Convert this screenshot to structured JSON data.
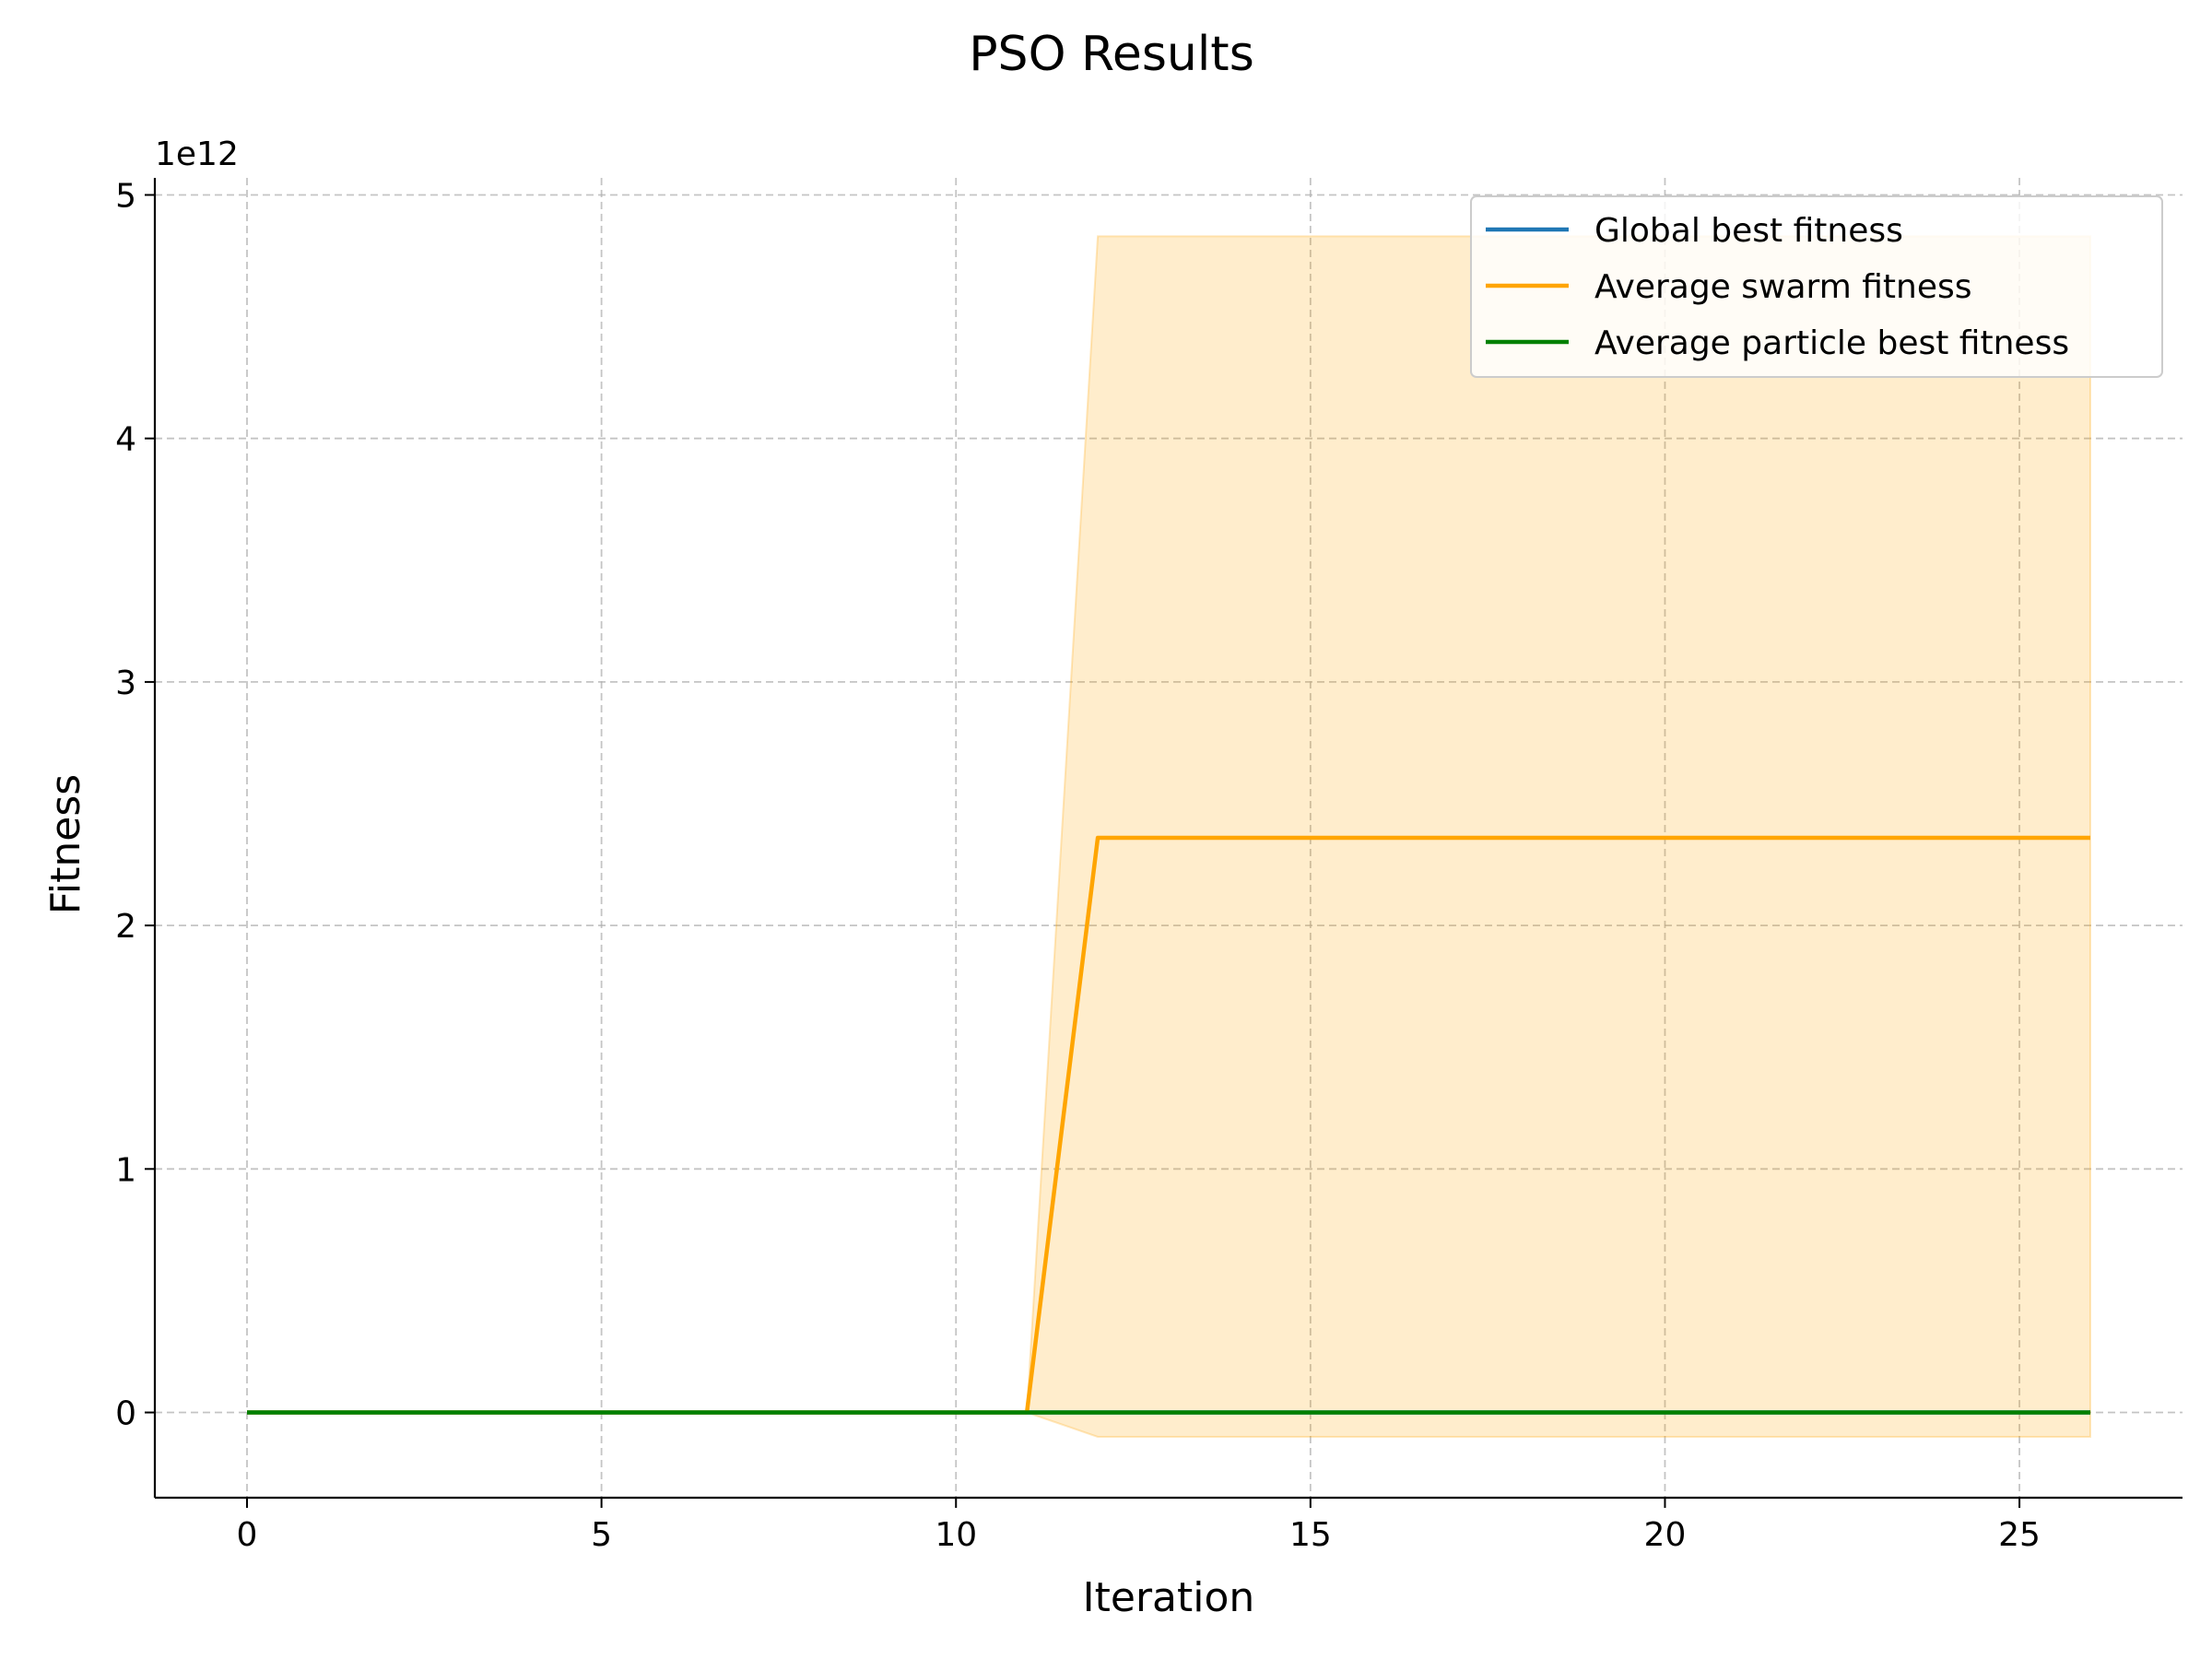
{
  "chart_data": {
    "type": "line",
    "title": "PSO Results",
    "xlabel": "Iteration",
    "ylabel": "Fitness",
    "y_offset_label": "1e12",
    "y_scale_factor": 1000000000000,
    "xlim": [
      -1.3,
      27.3
    ],
    "ylim": [
      -350000000000,
      5070000000000
    ],
    "x_ticks": [
      0,
      5,
      10,
      15,
      20,
      25
    ],
    "y_ticks": [
      0,
      1,
      2,
      3,
      4,
      5
    ],
    "grid": true,
    "legend_position": "upper right",
    "x": [
      0,
      1,
      2,
      3,
      4,
      5,
      6,
      7,
      8,
      9,
      10,
      11,
      12,
      13,
      14,
      15,
      16,
      17,
      18,
      19,
      20,
      21,
      22,
      23,
      24,
      25,
      26
    ],
    "series": [
      {
        "name": "Global best fitness",
        "color": "#1f77b4",
        "values": [
          0,
          0,
          0,
          0,
          0,
          0,
          0,
          0,
          0,
          0,
          0,
          0,
          0,
          0,
          0,
          0,
          0,
          0,
          0,
          0,
          0,
          0,
          0,
          0,
          0,
          0,
          0
        ]
      },
      {
        "name": "Average swarm fitness",
        "color": "#ffa500",
        "values": [
          0,
          0,
          0,
          0,
          0,
          0,
          0,
          0,
          0,
          0,
          0,
          0,
          2360000000000,
          2360000000000,
          2360000000000,
          2360000000000,
          2360000000000,
          2360000000000,
          2360000000000,
          2360000000000,
          2360000000000,
          2360000000000,
          2360000000000,
          2360000000000,
          2360000000000,
          2360000000000,
          2360000000000
        ],
        "band_upper": [
          0,
          0,
          0,
          0,
          0,
          0,
          0,
          0,
          0,
          0,
          0,
          0,
          4830000000000,
          4830000000000,
          4830000000000,
          4830000000000,
          4830000000000,
          4830000000000,
          4830000000000,
          4830000000000,
          4830000000000,
          4830000000000,
          4830000000000,
          4830000000000,
          4830000000000,
          4830000000000,
          4830000000000
        ],
        "band_lower": [
          0,
          0,
          0,
          0,
          0,
          0,
          0,
          0,
          0,
          0,
          0,
          0,
          -100000000000,
          -100000000000,
          -100000000000,
          -100000000000,
          -100000000000,
          -100000000000,
          -100000000000,
          -100000000000,
          -100000000000,
          -100000000000,
          -100000000000,
          -100000000000,
          -100000000000,
          -100000000000,
          -100000000000
        ],
        "band_color": "#ffa500"
      },
      {
        "name": "Average particle best fitness",
        "color": "#008000",
        "values": [
          0,
          0,
          0,
          0,
          0,
          0,
          0,
          0,
          0,
          0,
          0,
          0,
          0,
          0,
          0,
          0,
          0,
          0,
          0,
          0,
          0,
          0,
          0,
          0,
          0,
          0,
          0
        ]
      }
    ]
  }
}
